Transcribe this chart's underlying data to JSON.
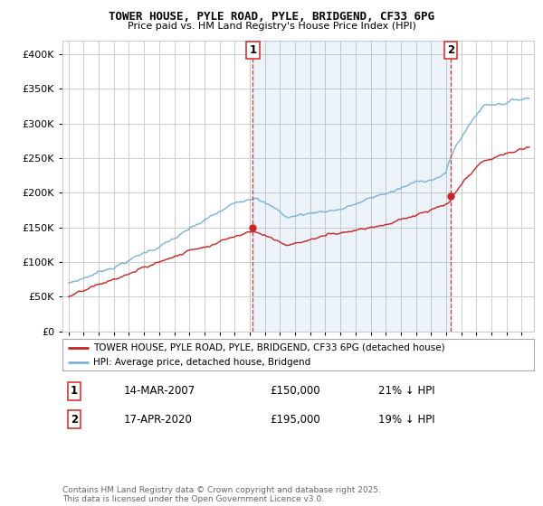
{
  "title": "TOWER HOUSE, PYLE ROAD, PYLE, BRIDGEND, CF33 6PG",
  "subtitle": "Price paid vs. HM Land Registry's House Price Index (HPI)",
  "ylim": [
    0,
    420000
  ],
  "yticks": [
    0,
    50000,
    100000,
    150000,
    200000,
    250000,
    300000,
    350000,
    400000
  ],
  "legend_line1": "TOWER HOUSE, PYLE ROAD, PYLE, BRIDGEND, CF33 6PG (detached house)",
  "legend_line2": "HPI: Average price, detached house, Bridgend",
  "sale1_date": "14-MAR-2007",
  "sale1_price": "£150,000",
  "sale1_hpi": "21% ↓ HPI",
  "sale2_date": "17-APR-2020",
  "sale2_price": "£195,000",
  "sale2_hpi": "19% ↓ HPI",
  "copyright": "Contains HM Land Registry data © Crown copyright and database right 2025.\nThis data is licensed under the Open Government Licence v3.0.",
  "hpi_color": "#7ab3d4",
  "hpi_fill_color": "#ddeef7",
  "price_color": "#cc2222",
  "vline_color": "#dd3333",
  "marker_color": "#cc2222",
  "background_color": "#ffffff",
  "grid_color": "#cccccc",
  "sale1_year": 2007.21,
  "sale2_year": 2020.29
}
